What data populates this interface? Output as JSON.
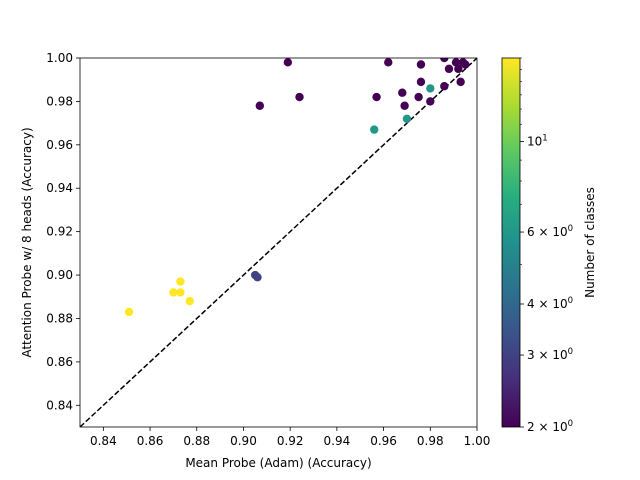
{
  "chart_data": {
    "type": "scatter",
    "title": "",
    "xlabel": "Mean Probe (Adam) (Accuracy)",
    "ylabel": "Attention Probe w/ 8 heads (Accuracy)",
    "xlim": [
      0.83,
      1.0
    ],
    "ylim": [
      0.83,
      1.0
    ],
    "xticks": [
      "0.84",
      "0.86",
      "0.88",
      "0.90",
      "0.92",
      "0.94",
      "0.96",
      "0.98",
      "1.00"
    ],
    "yticks": [
      "0.84",
      "0.86",
      "0.88",
      "0.90",
      "0.92",
      "0.94",
      "0.96",
      "0.98",
      "1.00"
    ],
    "grid": false,
    "reference_line": {
      "style": "dashed",
      "color": "#000000",
      "description": "y = x"
    },
    "colorbar": {
      "label": "Number of classes",
      "scale": "log",
      "range": [
        2,
        16
      ],
      "colormap": "viridis",
      "ticks": [
        {
          "value": 2,
          "base": "2",
          "exp": "0",
          "coeff": true
        },
        {
          "value": 3,
          "base": "3",
          "exp": "0",
          "coeff": true
        },
        {
          "value": 4,
          "base": "4",
          "exp": "0",
          "coeff": true
        },
        {
          "value": 6,
          "base": "6",
          "exp": "0",
          "coeff": true
        },
        {
          "value": 10,
          "base": "10",
          "exp": "1",
          "coeff": false
        }
      ]
    },
    "points": [
      {
        "x": 0.851,
        "y": 0.883,
        "c": 16
      },
      {
        "x": 0.87,
        "y": 0.892,
        "c": 16
      },
      {
        "x": 0.873,
        "y": 0.897,
        "c": 16
      },
      {
        "x": 0.873,
        "y": 0.892,
        "c": 16
      },
      {
        "x": 0.877,
        "y": 0.888,
        "c": 16
      },
      {
        "x": 0.905,
        "y": 0.9,
        "c": 3
      },
      {
        "x": 0.906,
        "y": 0.899,
        "c": 3
      },
      {
        "x": 0.907,
        "y": 0.978,
        "c": 2
      },
      {
        "x": 0.919,
        "y": 0.998,
        "c": 2
      },
      {
        "x": 0.924,
        "y": 0.982,
        "c": 2
      },
      {
        "x": 0.956,
        "y": 0.967,
        "c": 6
      },
      {
        "x": 0.957,
        "y": 0.982,
        "c": 2
      },
      {
        "x": 0.962,
        "y": 0.998,
        "c": 2
      },
      {
        "x": 0.968,
        "y": 0.984,
        "c": 2
      },
      {
        "x": 0.969,
        "y": 0.978,
        "c": 2
      },
      {
        "x": 0.97,
        "y": 0.972,
        "c": 6
      },
      {
        "x": 0.975,
        "y": 0.982,
        "c": 2
      },
      {
        "x": 0.976,
        "y": 0.997,
        "c": 2
      },
      {
        "x": 0.976,
        "y": 0.989,
        "c": 2
      },
      {
        "x": 0.98,
        "y": 0.98,
        "c": 2
      },
      {
        "x": 0.98,
        "y": 0.986,
        "c": 6
      },
      {
        "x": 0.986,
        "y": 1.0,
        "c": 2
      },
      {
        "x": 0.986,
        "y": 0.987,
        "c": 2
      },
      {
        "x": 0.988,
        "y": 0.995,
        "c": 2
      },
      {
        "x": 0.991,
        "y": 0.998,
        "c": 2
      },
      {
        "x": 0.992,
        "y": 0.995,
        "c": 2
      },
      {
        "x": 0.993,
        "y": 0.989,
        "c": 2
      },
      {
        "x": 0.994,
        "y": 0.998,
        "c": 2
      },
      {
        "x": 0.995,
        "y": 0.997,
        "c": 2
      }
    ]
  }
}
